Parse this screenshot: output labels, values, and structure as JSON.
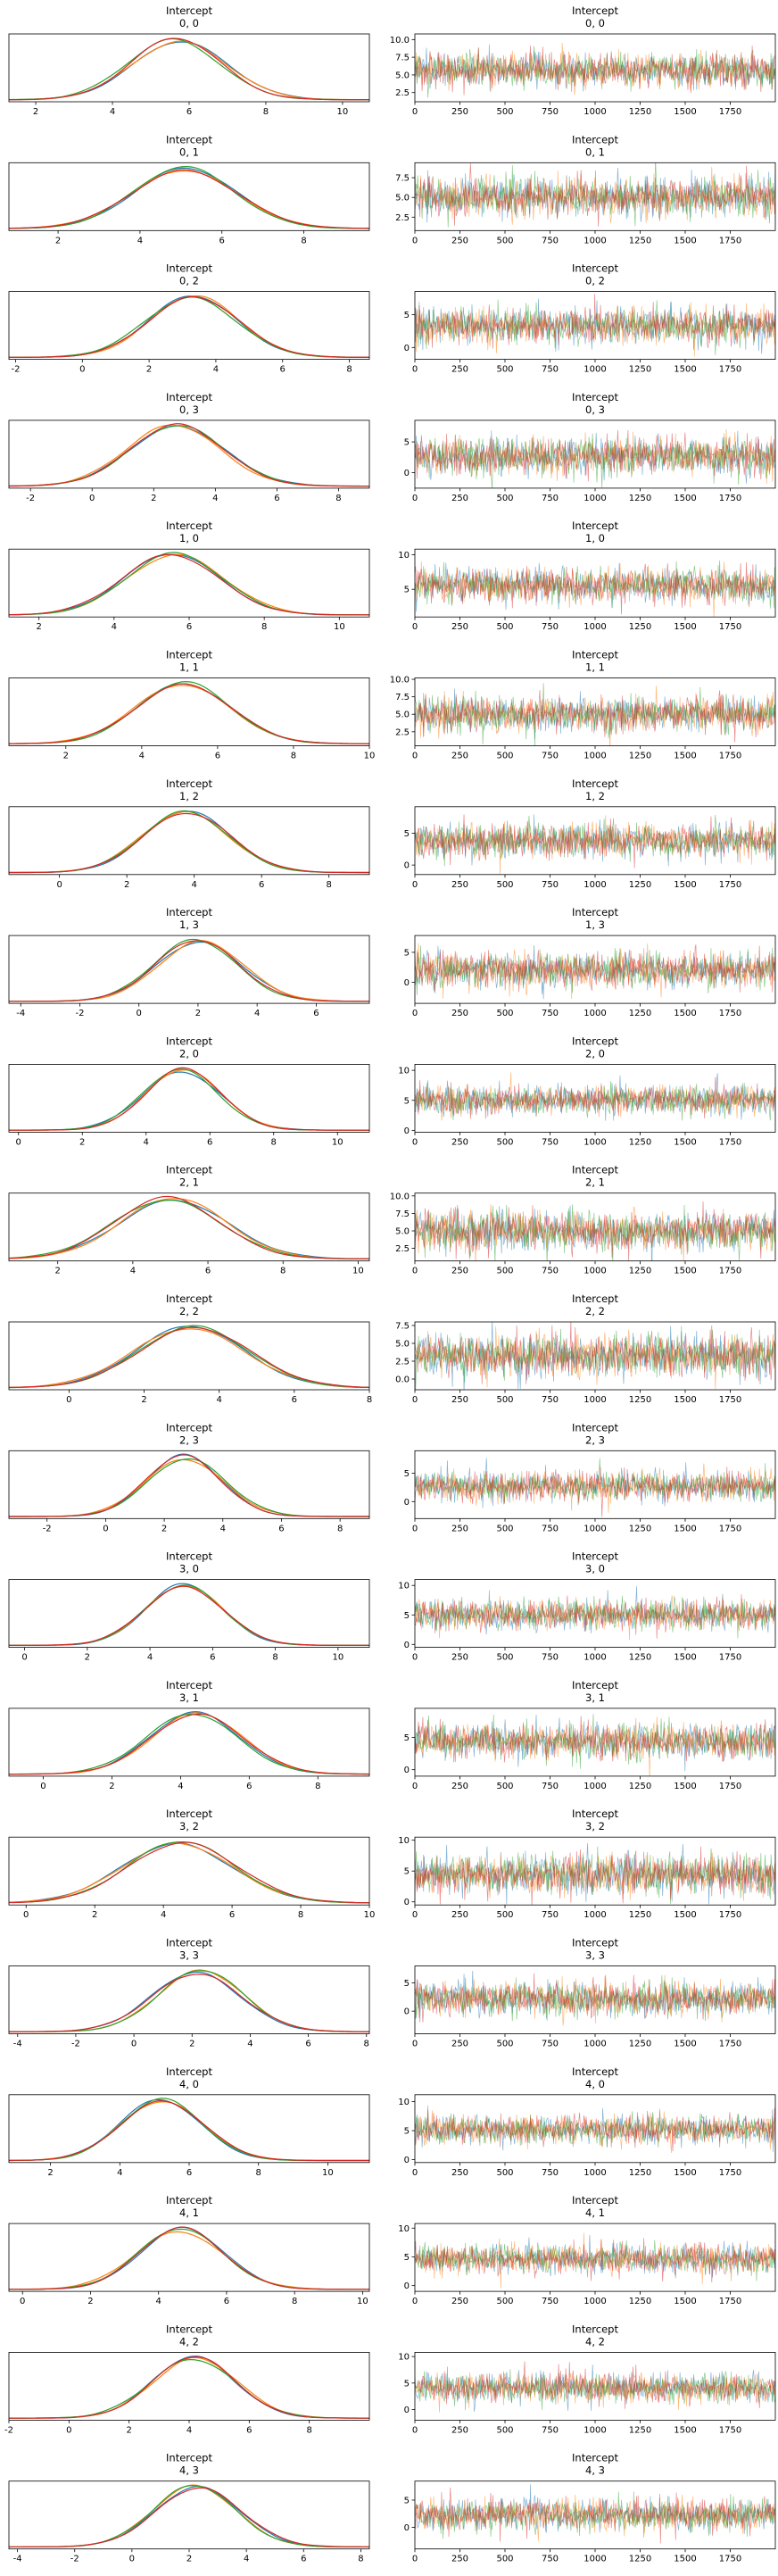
{
  "figure": {
    "type": "trace-plot",
    "colors": [
      "#1f77b4",
      "#ff7f0e",
      "#2ca02c",
      "#d62728"
    ]
  },
  "chart_data": [
    {
      "row": 0,
      "title": "Intercept\n0, 0",
      "kde": {
        "type": "line",
        "mean": 5.7,
        "sd": 1.2,
        "x_ticks": [
          2,
          4,
          6,
          8,
          10
        ],
        "xlim": [
          1.3,
          10.7
        ]
      },
      "trace": {
        "type": "line",
        "x_ticks": [
          0,
          250,
          500,
          750,
          1000,
          1250,
          1500,
          1750
        ],
        "y_ticks": [
          2.5,
          5.0,
          7.5,
          10.0
        ],
        "ylim": [
          1.2,
          10.8
        ],
        "xlim": [
          0,
          2000
        ],
        "draws": 2000,
        "chains": 4
      }
    },
    {
      "row": 1,
      "title": "Intercept\n0, 1",
      "kde": {
        "type": "line",
        "mean": 5.1,
        "sd": 1.25,
        "x_ticks": [
          2,
          4,
          6,
          8
        ],
        "xlim": [
          0.8,
          9.6
        ]
      },
      "trace": {
        "type": "line",
        "x_ticks": [
          0,
          250,
          500,
          750,
          1000,
          1250,
          1500,
          1750
        ],
        "y_ticks": [
          2.5,
          5.0,
          7.5
        ],
        "ylim": [
          0.8,
          9.4
        ],
        "xlim": [
          0,
          2000
        ],
        "draws": 2000,
        "chains": 4
      }
    },
    {
      "row": 2,
      "title": "Intercept\n0, 2",
      "kde": {
        "type": "line",
        "mean": 3.3,
        "sd": 1.35,
        "x_ticks": [
          -2,
          0,
          2,
          4,
          6,
          8
        ],
        "xlim": [
          -2.2,
          8.6
        ]
      },
      "trace": {
        "type": "line",
        "x_ticks": [
          0,
          250,
          500,
          750,
          1000,
          1250,
          1500,
          1750
        ],
        "y_ticks": [
          0,
          5
        ],
        "ylim": [
          -1.8,
          8.5
        ],
        "xlim": [
          0,
          2000
        ],
        "draws": 2000,
        "chains": 4
      }
    },
    {
      "row": 3,
      "title": "Intercept\n0, 3",
      "kde": {
        "type": "line",
        "mean": 2.7,
        "sd": 1.5,
        "x_ticks": [
          -2,
          0,
          2,
          4,
          6,
          8
        ],
        "xlim": [
          -2.7,
          9.0
        ]
      },
      "trace": {
        "type": "line",
        "x_ticks": [
          0,
          250,
          500,
          750,
          1000,
          1250,
          1500,
          1750
        ],
        "y_ticks": [
          0,
          5
        ],
        "ylim": [
          -2.5,
          8.5
        ],
        "xlim": [
          0,
          2000
        ],
        "draws": 2000,
        "chains": 4
      }
    },
    {
      "row": 4,
      "title": "Intercept\n1, 0",
      "kde": {
        "type": "line",
        "mean": 5.6,
        "sd": 1.25,
        "x_ticks": [
          2,
          4,
          6,
          8,
          10
        ],
        "xlim": [
          1.2,
          10.8
        ]
      },
      "trace": {
        "type": "line",
        "x_ticks": [
          0,
          250,
          500,
          750,
          1000,
          1250,
          1500,
          1750
        ],
        "y_ticks": [
          5,
          10
        ],
        "ylim": [
          1.0,
          10.8
        ],
        "xlim": [
          0,
          2000
        ],
        "draws": 2000,
        "chains": 4
      }
    },
    {
      "row": 5,
      "title": "Intercept\n1, 1",
      "kde": {
        "type": "line",
        "mean": 5.0,
        "sd": 1.25,
        "x_ticks": [
          2,
          4,
          6,
          8,
          10
        ],
        "xlim": [
          0.5,
          10.0
        ]
      },
      "trace": {
        "type": "line",
        "x_ticks": [
          0,
          250,
          500,
          750,
          1000,
          1250,
          1500,
          1750
        ],
        "y_ticks": [
          2.5,
          5.0,
          7.5,
          10.0
        ],
        "ylim": [
          0.5,
          10.2
        ],
        "xlim": [
          0,
          2000
        ],
        "draws": 2000,
        "chains": 4
      }
    },
    {
      "row": 6,
      "title": "Intercept\n1, 2",
      "kde": {
        "type": "line",
        "mean": 3.8,
        "sd": 1.3,
        "x_ticks": [
          0,
          2,
          4,
          6,
          8
        ],
        "xlim": [
          -1.5,
          9.2
        ]
      },
      "trace": {
        "type": "line",
        "x_ticks": [
          0,
          250,
          500,
          750,
          1000,
          1250,
          1500,
          1750
        ],
        "y_ticks": [
          0,
          5
        ],
        "ylim": [
          -1.5,
          9.2
        ],
        "xlim": [
          0,
          2000
        ],
        "draws": 2000,
        "chains": 4
      }
    },
    {
      "row": 7,
      "title": "Intercept\n1, 3",
      "kde": {
        "type": "line",
        "mean": 2.0,
        "sd": 1.45,
        "x_ticks": [
          -4,
          -2,
          0,
          2,
          4,
          6
        ],
        "xlim": [
          -4.4,
          7.8
        ]
      },
      "trace": {
        "type": "line",
        "x_ticks": [
          0,
          250,
          500,
          750,
          1000,
          1250,
          1500,
          1750
        ],
        "y_ticks": [
          0,
          5
        ],
        "ylim": [
          -3.5,
          7.8
        ],
        "xlim": [
          0,
          2000
        ],
        "draws": 2000,
        "chains": 4
      }
    },
    {
      "row": 8,
      "title": "Intercept\n2, 0",
      "kde": {
        "type": "line",
        "mean": 5.1,
        "sd": 1.2,
        "x_ticks": [
          0,
          2,
          4,
          6,
          8,
          10
        ],
        "xlim": [
          -0.3,
          11.0
        ]
      },
      "trace": {
        "type": "line",
        "x_ticks": [
          0,
          250,
          500,
          750,
          1000,
          1250,
          1500,
          1750
        ],
        "y_ticks": [
          0,
          5,
          10
        ],
        "ylim": [
          -0.3,
          11.0
        ],
        "xlim": [
          0,
          2000
        ],
        "draws": 2000,
        "chains": 4
      }
    },
    {
      "row": 9,
      "title": "Intercept\n2, 1",
      "kde": {
        "type": "line",
        "mean": 5.0,
        "sd": 1.4,
        "x_ticks": [
          2,
          4,
          6,
          8,
          10
        ],
        "xlim": [
          0.7,
          10.3
        ]
      },
      "trace": {
        "type": "line",
        "x_ticks": [
          0,
          250,
          500,
          750,
          1000,
          1250,
          1500,
          1750
        ],
        "y_ticks": [
          2.5,
          5.0,
          7.5,
          10.0
        ],
        "ylim": [
          0.7,
          10.4
        ],
        "xlim": [
          0,
          2000
        ],
        "draws": 2000,
        "chains": 4
      }
    },
    {
      "row": 10,
      "title": "Intercept\n2, 2",
      "kde": {
        "type": "line",
        "mean": 3.3,
        "sd": 1.45,
        "x_ticks": [
          0,
          2,
          4,
          6,
          8
        ],
        "xlim": [
          -1.6,
          8.0
        ]
      },
      "trace": {
        "type": "line",
        "x_ticks": [
          0,
          250,
          500,
          750,
          1000,
          1250,
          1500,
          1750
        ],
        "y_ticks": [
          0.0,
          2.5,
          5.0,
          7.5
        ],
        "ylim": [
          -1.5,
          8.0
        ],
        "xlim": [
          0,
          2000
        ],
        "draws": 2000,
        "chains": 4
      }
    },
    {
      "row": 11,
      "title": "Intercept\n2, 3",
      "kde": {
        "type": "line",
        "mean": 2.7,
        "sd": 1.3,
        "x_ticks": [
          -2,
          0,
          2,
          4,
          6,
          8
        ],
        "xlim": [
          -3.3,
          9.0
        ]
      },
      "trace": {
        "type": "line",
        "x_ticks": [
          0,
          250,
          500,
          750,
          1000,
          1250,
          1500,
          1750
        ],
        "y_ticks": [
          0,
          5
        ],
        "ylim": [
          -3.0,
          9.0
        ],
        "xlim": [
          0,
          2000
        ],
        "draws": 2000,
        "chains": 4
      }
    },
    {
      "row": 12,
      "title": "Intercept\n3, 0",
      "kde": {
        "type": "line",
        "mean": 5.0,
        "sd": 1.25,
        "x_ticks": [
          0,
          2,
          4,
          6,
          8,
          10
        ],
        "xlim": [
          -0.5,
          11.0
        ]
      },
      "trace": {
        "type": "line",
        "x_ticks": [
          0,
          250,
          500,
          750,
          1000,
          1250,
          1500,
          1750
        ],
        "y_ticks": [
          0,
          5,
          10
        ],
        "ylim": [
          -0.5,
          11.0
        ],
        "xlim": [
          0,
          2000
        ],
        "draws": 2000,
        "chains": 4
      }
    },
    {
      "row": 13,
      "title": "Intercept\n3, 1",
      "kde": {
        "type": "line",
        "mean": 4.4,
        "sd": 1.35,
        "x_ticks": [
          0,
          2,
          4,
          6,
          8
        ],
        "xlim": [
          -1.0,
          9.5
        ]
      },
      "trace": {
        "type": "line",
        "x_ticks": [
          0,
          250,
          500,
          750,
          1000,
          1250,
          1500,
          1750
        ],
        "y_ticks": [
          0,
          5
        ],
        "ylim": [
          -1.0,
          9.5
        ],
        "xlim": [
          0,
          2000
        ],
        "draws": 2000,
        "chains": 4
      }
    },
    {
      "row": 14,
      "title": "Intercept\n3, 2",
      "kde": {
        "type": "line",
        "mean": 4.5,
        "sd": 1.6,
        "x_ticks": [
          0,
          2,
          4,
          6,
          8,
          10
        ],
        "xlim": [
          -0.5,
          10.0
        ]
      },
      "trace": {
        "type": "line",
        "x_ticks": [
          0,
          250,
          500,
          750,
          1000,
          1250,
          1500,
          1750
        ],
        "y_ticks": [
          0,
          5,
          10
        ],
        "ylim": [
          -0.5,
          10.5
        ],
        "xlim": [
          0,
          2000
        ],
        "draws": 2000,
        "chains": 4
      }
    },
    {
      "row": 15,
      "title": "Intercept\n3, 3",
      "kde": {
        "type": "line",
        "mean": 2.2,
        "sd": 1.5,
        "x_ticks": [
          -4,
          -2,
          0,
          2,
          4,
          6,
          8
        ],
        "xlim": [
          -4.3,
          8.1
        ]
      },
      "trace": {
        "type": "line",
        "x_ticks": [
          0,
          250,
          500,
          750,
          1000,
          1250,
          1500,
          1750
        ],
        "y_ticks": [
          0,
          5
        ],
        "ylim": [
          -4.0,
          8.0
        ],
        "xlim": [
          0,
          2000
        ],
        "draws": 2000,
        "chains": 4
      }
    },
    {
      "row": 16,
      "title": "Intercept\n4, 0",
      "kde": {
        "type": "line",
        "mean": 5.2,
        "sd": 1.2,
        "x_ticks": [
          2,
          4,
          6,
          8,
          10
        ],
        "xlim": [
          0.8,
          11.2
        ]
      },
      "trace": {
        "type": "line",
        "x_ticks": [
          0,
          250,
          500,
          750,
          1000,
          1250,
          1500,
          1750
        ],
        "y_ticks": [
          0,
          5,
          10
        ],
        "ylim": [
          -0.5,
          11.2
        ],
        "xlim": [
          0,
          2000
        ],
        "draws": 2000,
        "chains": 4
      }
    },
    {
      "row": 17,
      "title": "Intercept\n4, 1",
      "kde": {
        "type": "line",
        "mean": 4.6,
        "sd": 1.25,
        "x_ticks": [
          0,
          2,
          4,
          6,
          8,
          10
        ],
        "xlim": [
          -0.4,
          10.2
        ]
      },
      "trace": {
        "type": "line",
        "x_ticks": [
          0,
          250,
          500,
          750,
          1000,
          1250,
          1500,
          1750
        ],
        "y_ticks": [
          0,
          5,
          10
        ],
        "ylim": [
          -1.0,
          10.8
        ],
        "xlim": [
          0,
          2000
        ],
        "draws": 2000,
        "chains": 4
      }
    },
    {
      "row": 18,
      "title": "Intercept\n4, 2",
      "kde": {
        "type": "line",
        "mean": 4.1,
        "sd": 1.4,
        "x_ticks": [
          -2,
          0,
          2,
          4,
          6,
          8
        ],
        "xlim": [
          -2.0,
          10.0
        ]
      },
      "trace": {
        "type": "line",
        "x_ticks": [
          0,
          250,
          500,
          750,
          1000,
          1250,
          1500,
          1750
        ],
        "y_ticks": [
          0,
          5,
          10
        ],
        "ylim": [
          -2.0,
          10.8
        ],
        "xlim": [
          0,
          2000
        ],
        "draws": 2000,
        "chains": 4
      }
    },
    {
      "row": 19,
      "title": "Intercept\n4, 3",
      "kde": {
        "type": "line",
        "mean": 2.3,
        "sd": 1.45,
        "x_ticks": [
          -4,
          -2,
          0,
          2,
          4,
          6,
          8
        ],
        "xlim": [
          -4.3,
          8.3
        ]
      },
      "trace": {
        "type": "line",
        "x_ticks": [
          0,
          250,
          500,
          750,
          1000,
          1250,
          1500,
          1750
        ],
        "y_ticks": [
          0,
          5
        ],
        "ylim": [
          -4.0,
          8.5
        ],
        "xlim": [
          0,
          2000
        ],
        "draws": 2000,
        "chains": 4
      }
    }
  ]
}
